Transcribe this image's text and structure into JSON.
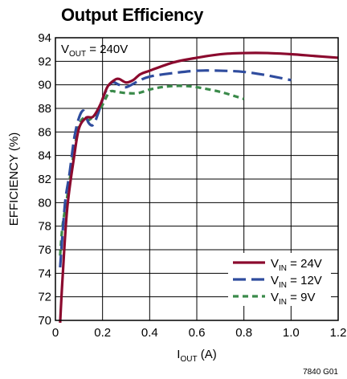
{
  "chart_data": {
    "type": "line",
    "title": "Output Efficiency",
    "annotation": {
      "main": "V",
      "sub": "OUT",
      "rest": " = 240V"
    },
    "xlabel": {
      "main": "I",
      "sub": "OUT",
      "rest": " (A)"
    },
    "ylabel": "EFFICIENCY (%)",
    "xlim": [
      0,
      1.2
    ],
    "ylim": [
      70,
      94
    ],
    "xticks": [
      "0",
      "0.2",
      "0.4",
      "0.6",
      "0.8",
      "1.0",
      "1.2"
    ],
    "yticks": [
      "70",
      "72",
      "74",
      "76",
      "78",
      "80",
      "82",
      "84",
      "86",
      "88",
      "90",
      "92",
      "94"
    ],
    "grid": true,
    "legend_position": "bottom-right",
    "figure_code": "7840 G01",
    "series": [
      {
        "name": "24V",
        "label_main": "V",
        "label_sub": "IN",
        "label_rest": " = 24V",
        "color": "#8b0a2e",
        "dash": "solid",
        "x": [
          0.02,
          0.03,
          0.05,
          0.08,
          0.1,
          0.13,
          0.16,
          0.19,
          0.22,
          0.25,
          0.27,
          0.3,
          0.33,
          0.36,
          0.4,
          0.5,
          0.6,
          0.7,
          0.8,
          0.9,
          1.0,
          1.1,
          1.2
        ],
        "y": [
          69.8,
          73.5,
          79.5,
          84.0,
          86.3,
          87.2,
          87.3,
          88.3,
          89.8,
          90.4,
          90.5,
          90.2,
          90.4,
          90.9,
          91.2,
          91.9,
          92.3,
          92.6,
          92.7,
          92.7,
          92.6,
          92.45,
          92.3
        ]
      },
      {
        "name": "12V",
        "label_main": "V",
        "label_sub": "IN",
        "label_rest": " = 12V",
        "color": "#2f4c9e",
        "dash": "long-dash",
        "x": [
          0.02,
          0.04,
          0.06,
          0.08,
          0.1,
          0.12,
          0.14,
          0.16,
          0.18,
          0.21,
          0.24,
          0.27,
          0.3,
          0.35,
          0.4,
          0.5,
          0.6,
          0.7,
          0.8,
          0.9,
          1.0
        ],
        "y": [
          74.5,
          79.8,
          82.5,
          85.5,
          87.2,
          87.8,
          86.8,
          86.6,
          87.5,
          89.3,
          90.2,
          90.0,
          89.8,
          90.3,
          90.7,
          91.0,
          91.2,
          91.2,
          91.1,
          90.8,
          90.4
        ]
      },
      {
        "name": "9V",
        "label_main": "V",
        "label_sub": "IN",
        "label_rest": " = 9V",
        "color": "#3a8a4a",
        "dash": "short-dash",
        "x": [
          0.02,
          0.03,
          0.05,
          0.08,
          0.1,
          0.12,
          0.14,
          0.16,
          0.18,
          0.2,
          0.23,
          0.26,
          0.3,
          0.35,
          0.4,
          0.45,
          0.5,
          0.55,
          0.6,
          0.7,
          0.8
        ],
        "y": [
          75.5,
          78.0,
          80.5,
          84.5,
          86.5,
          87.2,
          87.0,
          87.3,
          87.6,
          88.3,
          89.4,
          89.4,
          89.3,
          89.3,
          89.6,
          89.8,
          89.9,
          89.9,
          89.8,
          89.4,
          88.8
        ]
      }
    ]
  }
}
